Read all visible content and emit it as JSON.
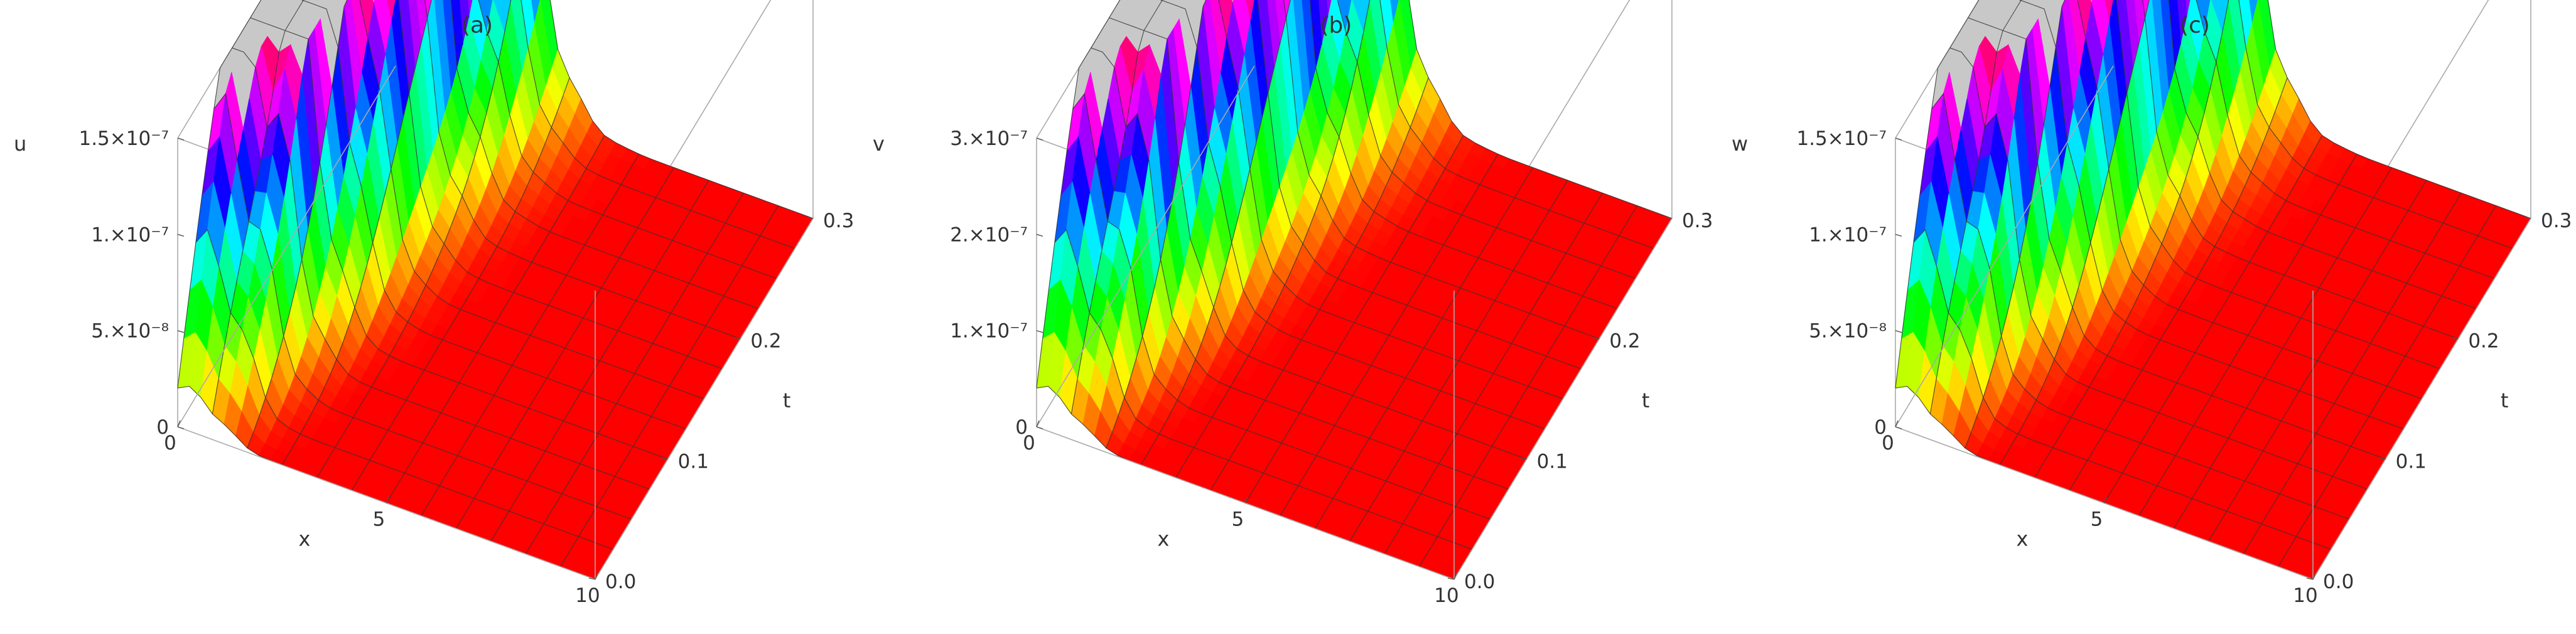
{
  "chart_data": [
    {
      "type": "surface3d",
      "title": "(a)",
      "zlabel": "u",
      "xlabel": "x",
      "ylabel": "t",
      "xlim": [
        0,
        10
      ],
      "ylim": [
        0,
        0.3
      ],
      "zlim": [
        0,
        1.5e-07
      ],
      "x_ticks": [
        "0",
        "5",
        "10"
      ],
      "y_ticks": [
        "0.0",
        "0.1",
        "0.2",
        "0.3"
      ],
      "z_ticks": [
        "0",
        "5.×10⁻⁸",
        "1.×10⁻⁷",
        "1.5×10⁻⁷"
      ],
      "z_tick_values": [
        0,
        5e-08,
        1e-07,
        1.5e-07
      ],
      "x_grid": [
        0,
        0.83,
        1.67,
        2.5,
        3.33,
        4.17,
        5,
        5.83,
        6.67,
        7.5,
        8.33,
        9.17,
        10
      ],
      "t_grid": [
        0,
        0.025,
        0.05,
        0.075,
        0.1,
        0.125,
        0.15,
        0.175,
        0.2,
        0.225,
        0.25,
        0.275,
        0.3
      ],
      "surface_description": "clipped peak near x=0 growing with t; decays to 0 for x>3",
      "colormap": "hue"
    },
    {
      "type": "surface3d",
      "title": "(b)",
      "zlabel": "v",
      "xlabel": "x",
      "ylabel": "t",
      "xlim": [
        0,
        10
      ],
      "ylim": [
        0,
        0.3
      ],
      "zlim": [
        0,
        3e-07
      ],
      "x_ticks": [
        "0",
        "5",
        "10"
      ],
      "y_ticks": [
        "0.0",
        "0.1",
        "0.2",
        "0.3"
      ],
      "z_ticks": [
        "0",
        "1.×10⁻⁷",
        "2.×10⁻⁷",
        "3.×10⁻⁷"
      ],
      "z_tick_values": [
        0,
        1e-07,
        2e-07,
        3e-07
      ],
      "x_grid": [
        0,
        0.83,
        1.67,
        2.5,
        3.33,
        4.17,
        5,
        5.83,
        6.67,
        7.5,
        8.33,
        9.17,
        10
      ],
      "t_grid": [
        0,
        0.025,
        0.05,
        0.075,
        0.1,
        0.125,
        0.15,
        0.175,
        0.2,
        0.225,
        0.25,
        0.275,
        0.3
      ],
      "surface_description": "clipped peak near x=0 growing with t; decays to 0 for x>3",
      "colormap": "hue"
    },
    {
      "type": "surface3d",
      "title": "(c)",
      "zlabel": "w",
      "xlabel": "x",
      "ylabel": "t",
      "xlim": [
        0,
        10
      ],
      "ylim": [
        0,
        0.3
      ],
      "zlim": [
        0,
        1.5e-07
      ],
      "x_ticks": [
        "0",
        "5",
        "10"
      ],
      "y_ticks": [
        "0.0",
        "0.1",
        "0.2",
        "0.3"
      ],
      "z_ticks": [
        "0",
        "5.×10⁻⁸",
        "1.×10⁻⁷",
        "1.5×10⁻⁷"
      ],
      "z_tick_values": [
        0,
        5e-08,
        1e-07,
        1.5e-07
      ],
      "x_grid": [
        0,
        0.83,
        1.67,
        2.5,
        3.33,
        4.17,
        5,
        5.83,
        6.67,
        7.5,
        8.33,
        9.17,
        10
      ],
      "t_grid": [
        0,
        0.025,
        0.05,
        0.075,
        0.1,
        0.125,
        0.15,
        0.175,
        0.2,
        0.225,
        0.25,
        0.275,
        0.3
      ],
      "surface_description": "clipped peak near x=0 growing with t; decays to 0 for x>3",
      "colormap": "hue"
    }
  ],
  "colors": {
    "base": "#ff1a1a",
    "clip_cap": "#c8c8c8",
    "box_edges": "#aaaaaa",
    "mesh": "#333333"
  }
}
